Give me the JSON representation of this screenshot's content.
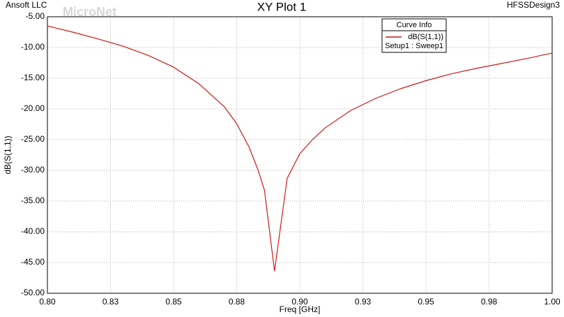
{
  "chart_data": {
    "type": "line",
    "title": "XY Plot 1",
    "company": "Ansoft LLC",
    "design": "HFSSDesign3",
    "watermark": "MicroNet",
    "x_label": "Freq [GHz]",
    "y_label": "dB(S(1,1))",
    "legend_title": "Curve Info",
    "legend_position": "top-right",
    "xlim": [
      0.8,
      1.0
    ],
    "ylim": [
      -50,
      -5
    ],
    "grid": true,
    "xticks": [
      {
        "value": 0.8,
        "label": "0.80"
      },
      {
        "value": 0.825,
        "label": "0.83"
      },
      {
        "value": 0.85,
        "label": "0.85"
      },
      {
        "value": 0.875,
        "label": "0.88"
      },
      {
        "value": 0.9,
        "label": "0.90"
      },
      {
        "value": 0.925,
        "label": "0.93"
      },
      {
        "value": 0.95,
        "label": "0.95"
      },
      {
        "value": 0.975,
        "label": "0.98"
      },
      {
        "value": 1.0,
        "label": "1.00"
      }
    ],
    "yticks": [
      {
        "value": -5,
        "label": "-5.00"
      },
      {
        "value": -10,
        "label": "-10.00"
      },
      {
        "value": -15,
        "label": "-15.00"
      },
      {
        "value": -20,
        "label": "-20.00"
      },
      {
        "value": -25,
        "label": "-25.00"
      },
      {
        "value": -30,
        "label": "-30.00"
      },
      {
        "value": -35,
        "label": "-35.00"
      },
      {
        "value": -40,
        "label": "-40.00"
      },
      {
        "value": -45,
        "label": "-45.00"
      },
      {
        "value": -50,
        "label": "-50.00"
      }
    ],
    "x": [
      0.8,
      0.81,
      0.82,
      0.83,
      0.84,
      0.85,
      0.86,
      0.87,
      0.875,
      0.88,
      0.8835,
      0.886,
      0.89,
      0.895,
      0.9,
      0.905,
      0.91,
      0.92,
      0.93,
      0.94,
      0.95,
      0.96,
      0.97,
      0.98,
      0.99,
      1.0
    ],
    "series": [
      {
        "name": "dB(S(1,1))",
        "setup": "Setup1 : Sweep1",
        "color": "#cc1a1a",
        "values": [
          -6.5,
          -7.5,
          -8.6,
          -9.8,
          -11.3,
          -13.2,
          -15.9,
          -19.6,
          -22.4,
          -26.3,
          -30.0,
          -33.2,
          -46.4,
          -31.3,
          -27.3,
          -25.0,
          -23.1,
          -20.3,
          -18.3,
          -16.7,
          -15.4,
          -14.3,
          -13.4,
          -12.6,
          -11.8,
          -10.9
        ]
      }
    ]
  }
}
